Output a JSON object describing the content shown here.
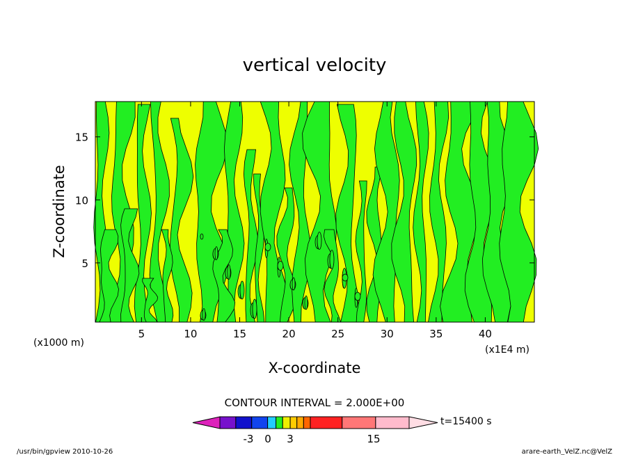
{
  "chart_data": {
    "type": "heatmap",
    "title": "vertical velocity",
    "xlabel": "X-coordinate",
    "ylabel": "Z-coordinate",
    "x_unit": "(x1E4 m)",
    "y_unit": "(x1000 m)",
    "x_ticks": [
      "5",
      "10",
      "15",
      "20",
      "25",
      "30",
      "35",
      "40"
    ],
    "y_ticks": [
      "5",
      "10",
      "15"
    ],
    "xlim": [
      0.3,
      45
    ],
    "ylim": [
      0.3,
      17.8
    ],
    "contour_interval": "CONTOUR INTERVAL = 2.000E+00",
    "time": "t=15400 s",
    "colorbar": {
      "colors": [
        "#dd22bb",
        "#7711cc",
        "#1111cc",
        "#1144ee",
        "#22ccff",
        "#22ee22",
        "#eeee00",
        "#ffcc00",
        "#ffaa00",
        "#ff6600",
        "#ff2222",
        "#ff7777",
        "#ffbbcc",
        "#ffdde4"
      ],
      "labels": [
        "-3",
        "0",
        "3",
        "15"
      ]
    },
    "field_colors": {
      "negative": "#22ee22",
      "positive": "#eeff00"
    }
  },
  "footer": {
    "left": "/usr/bin/gpview   2010-10-26",
    "right": "arare-earth_VelZ.nc@VelZ"
  }
}
